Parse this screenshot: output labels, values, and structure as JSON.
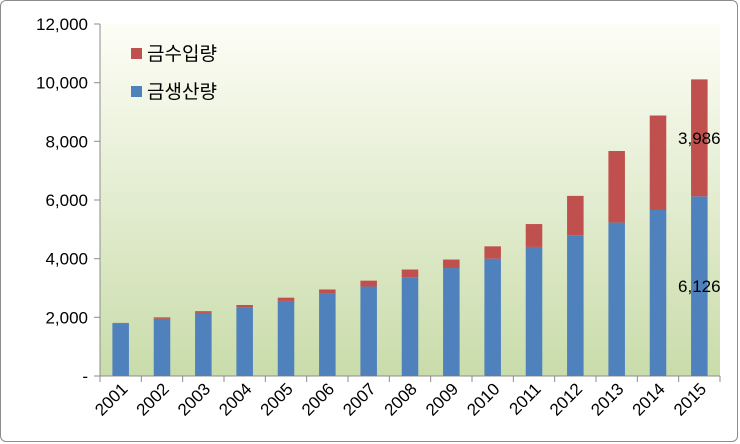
{
  "chart_data": {
    "type": "bar",
    "stacked": true,
    "title": "",
    "xlabel": "",
    "ylabel": "",
    "ylim": [
      0,
      12000
    ],
    "yticks": [
      0,
      2000,
      4000,
      6000,
      8000,
      10000,
      12000
    ],
    "ytick_labels": [
      "-",
      "2,000",
      "4,000",
      "6,000",
      "8,000",
      "10,000",
      "12,000"
    ],
    "grid": false,
    "legend_position": "top-left",
    "categories": [
      "2001",
      "2002",
      "2003",
      "2004",
      "2005",
      "2006",
      "2007",
      "2008",
      "2009",
      "2010",
      "2011",
      "2012",
      "2013",
      "2014",
      "2015"
    ],
    "series": [
      {
        "name": "금생산량",
        "color": "#4f81bd",
        "values": [
          1780,
          1950,
          2150,
          2350,
          2560,
          2800,
          3050,
          3370,
          3680,
          4000,
          4400,
          4800,
          5230,
          5660,
          6126
        ]
      },
      {
        "name": "금수입량",
        "color": "#c0504d",
        "values": [
          30,
          50,
          60,
          70,
          110,
          150,
          200,
          260,
          290,
          420,
          780,
          1340,
          2440,
          3220,
          3986
        ]
      }
    ],
    "annotations": [
      {
        "text": "3,986",
        "category": "2015",
        "series": "금수입량"
      },
      {
        "text": "6,126",
        "category": "2015",
        "series": "금생산량"
      }
    ],
    "plot_background": [
      "#fdfdf6",
      "#c9dcaa"
    ]
  }
}
